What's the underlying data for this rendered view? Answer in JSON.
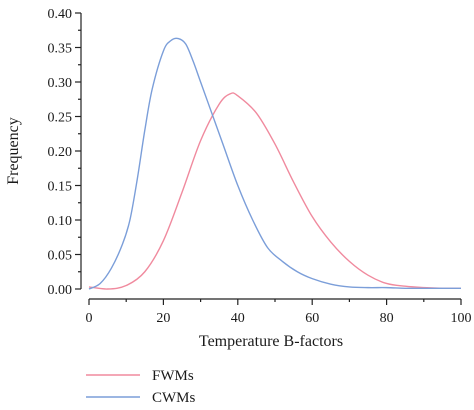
{
  "chart_data": {
    "type": "line",
    "xlabel": "Temperature B-factors",
    "ylabel": "Frequency",
    "xlim": [
      0,
      100
    ],
    "ylim": [
      0,
      0.4
    ],
    "xticks": [
      0,
      20,
      40,
      60,
      80,
      100
    ],
    "xtick_labels": [
      "0",
      "20",
      "40",
      "60",
      "80",
      "100"
    ],
    "yticks": [
      0,
      0.05,
      0.1,
      0.15,
      0.2,
      0.25,
      0.3,
      0.35,
      0.4
    ],
    "ytick_labels": [
      "0.00",
      "0.05",
      "0.10",
      "0.15",
      "0.20",
      "0.25",
      "0.30",
      "0.35",
      "0.40"
    ],
    "grid": false,
    "legend_position": "bottom-left",
    "series": [
      {
        "name": "FWMs",
        "color": "#f08a9e",
        "x": [
          0,
          5,
          10,
          15,
          20,
          25,
          30,
          35,
          38,
          40,
          45,
          50,
          55,
          60,
          65,
          70,
          75,
          80,
          85,
          90,
          95,
          100
        ],
        "y": [
          0.003,
          0.0,
          0.005,
          0.025,
          0.07,
          0.14,
          0.215,
          0.268,
          0.283,
          0.28,
          0.255,
          0.21,
          0.155,
          0.105,
          0.068,
          0.04,
          0.02,
          0.008,
          0.004,
          0.002,
          0.001,
          0.001
        ]
      },
      {
        "name": "CWMs",
        "color": "#7b9ed9",
        "x": [
          0,
          3,
          6,
          9,
          11,
          13,
          15,
          17,
          20,
          22,
          24,
          26,
          28,
          30,
          33,
          36,
          40,
          44,
          48,
          52,
          56,
          60,
          65,
          70,
          75,
          80,
          85,
          90,
          95,
          100
        ],
        "y": [
          0.0,
          0.008,
          0.03,
          0.065,
          0.1,
          0.16,
          0.23,
          0.29,
          0.345,
          0.36,
          0.363,
          0.355,
          0.33,
          0.3,
          0.255,
          0.21,
          0.15,
          0.1,
          0.06,
          0.04,
          0.025,
          0.015,
          0.007,
          0.003,
          0.002,
          0.002,
          0.001,
          0.001,
          0.001,
          0.001
        ]
      }
    ]
  }
}
